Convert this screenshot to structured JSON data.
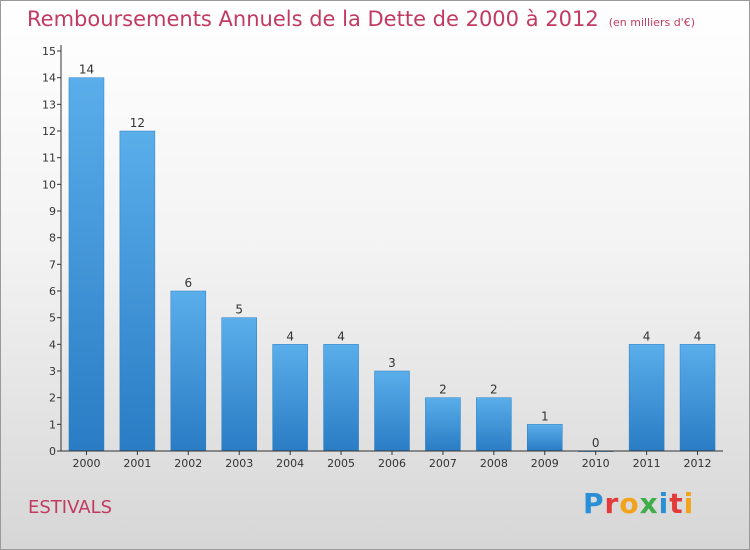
{
  "title": "Remboursements Annuels de la Dette de 2000 à 2012",
  "subtitle": "(en milliers d'€)",
  "commune": "ESTIVALS",
  "logo": {
    "letters": [
      "P",
      "r",
      "o",
      "x",
      "i",
      "t",
      "i"
    ],
    "colors": [
      "#2a8fd6",
      "#e23a3a",
      "#f3a21b",
      "#3fae49",
      "#2a8fd6",
      "#e23a3a",
      "#f3a21b"
    ]
  },
  "chart_data": {
    "type": "bar",
    "categories": [
      "2000",
      "2001",
      "2002",
      "2003",
      "2004",
      "2005",
      "2006",
      "2007",
      "2008",
      "2009",
      "2010",
      "2011",
      "2012"
    ],
    "values": [
      14,
      12,
      6,
      5,
      4,
      4,
      3,
      2,
      2,
      1,
      0,
      4,
      4
    ],
    "title": "Remboursements Annuels de la Dette de 2000 à 2012",
    "ylim": [
      0,
      15
    ],
    "yticks": [
      0,
      1,
      2,
      3,
      4,
      5,
      6,
      7,
      8,
      9,
      10,
      11,
      12,
      13,
      14,
      15
    ],
    "grid": false,
    "bar_color": "#4a9fe0"
  }
}
